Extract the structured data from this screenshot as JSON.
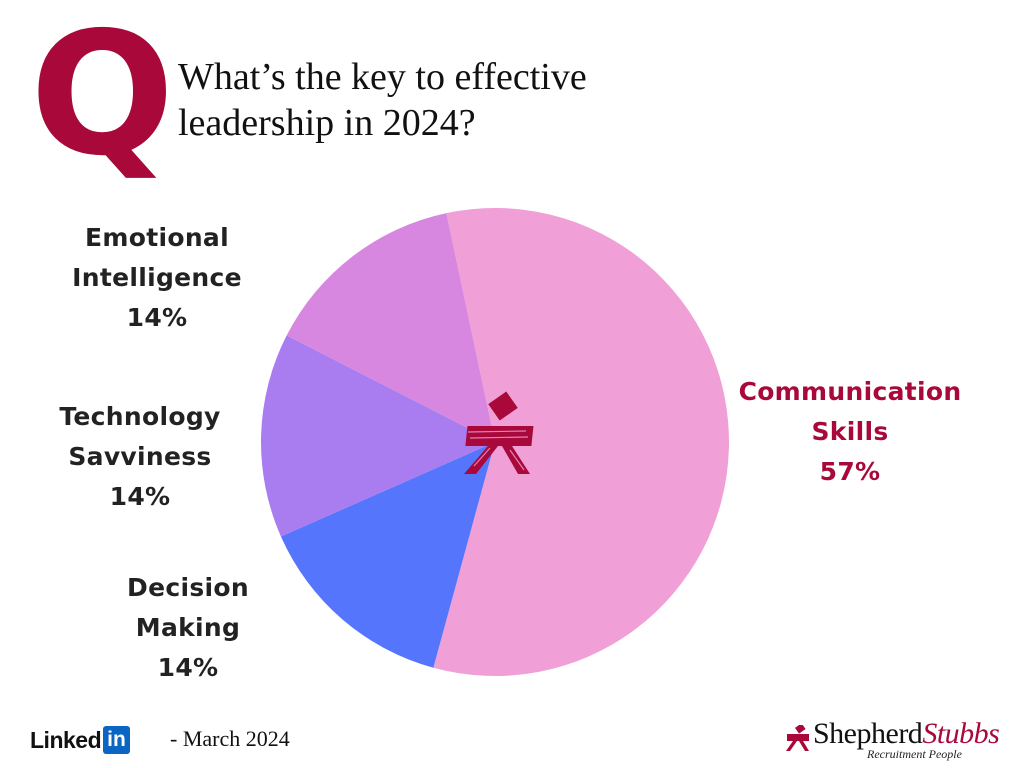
{
  "header": {
    "q_letter": "Q",
    "title_line1": "What’s the key to effective",
    "title_line2": "leadership in 2024?"
  },
  "colors": {
    "brand": "#a8083a",
    "communication": "#f0a0d6",
    "emotional": "#d787e0",
    "technology": "#a97cf0",
    "decision": "#5575fd"
  },
  "chart_data": {
    "type": "pie",
    "title": "What’s the key to effective leadership in 2024?",
    "start_angle_deg": -12,
    "direction": "clockwise",
    "slices": [
      {
        "label_line1": "Communication",
        "label_line2": "Skills",
        "pct_label": "57%",
        "value": 57,
        "color": "#f0a0d6",
        "label_color": "#a8083a"
      },
      {
        "label_line1": "Decision",
        "label_line2": "Making",
        "pct_label": "14%",
        "value": 14,
        "color": "#5575fd",
        "label_color": "#222222"
      },
      {
        "label_line1": "Technology",
        "label_line2": "Savviness",
        "pct_label": "14%",
        "value": 14,
        "color": "#a97cf0",
        "label_color": "#222222"
      },
      {
        "label_line1": "Emotional",
        "label_line2": "Intelligence",
        "pct_label": "14%",
        "value": 14,
        "color": "#d787e0",
        "label_color": "#222222"
      }
    ],
    "center_icon": "shepherd-stubbs-emblem-icon",
    "legend": "none"
  },
  "footer": {
    "linkedin_text": "Linked",
    "linkedin_box": "in",
    "date": "- March 2024",
    "company_name_1": "Shepherd",
    "company_name_2": "Stubbs",
    "company_tagline": "Recruitment People"
  }
}
